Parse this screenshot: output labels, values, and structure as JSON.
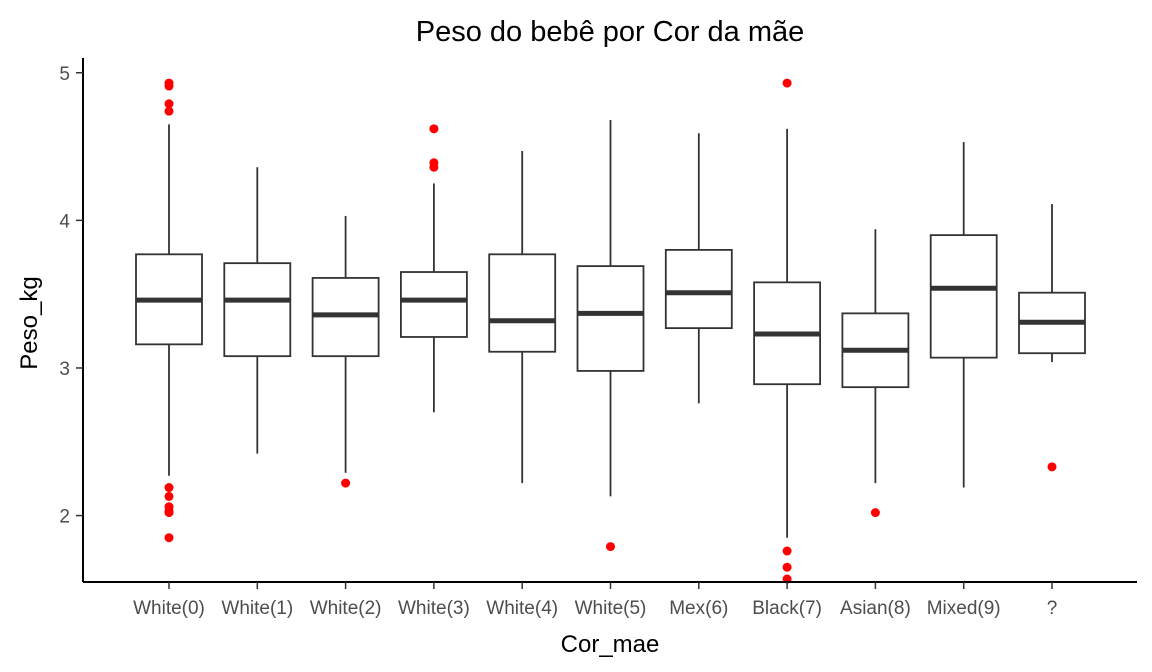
{
  "chart_data": {
    "type": "boxplot",
    "title": "Peso do bebê por Cor da mãe",
    "xlabel": "Cor_mae",
    "ylabel": "Peso_kg",
    "ylim": [
      1.55,
      5.1
    ],
    "yticks": [
      2,
      3,
      4,
      5
    ],
    "grid": false,
    "outlier_color": "#ff0000",
    "box_color": "#333333",
    "categories": [
      "White(0)",
      "White(1)",
      "White(2)",
      "White(3)",
      "White(4)",
      "White(5)",
      "Mex(6)",
      "Black(7)",
      "Asian(8)",
      "Mixed(9)",
      "?"
    ],
    "boxes": [
      {
        "category": "White(0)",
        "whisker_low": 2.27,
        "q1": 3.16,
        "median": 3.46,
        "q3": 3.77,
        "whisker_high": 4.65,
        "outliers": [
          4.93,
          4.91,
          4.79,
          4.74,
          2.19,
          2.13,
          2.06,
          2.03,
          2.02,
          1.85
        ]
      },
      {
        "category": "White(1)",
        "whisker_low": 2.42,
        "q1": 3.08,
        "median": 3.46,
        "q3": 3.71,
        "whisker_high": 4.36,
        "outliers": []
      },
      {
        "category": "White(2)",
        "whisker_low": 2.29,
        "q1": 3.08,
        "median": 3.36,
        "q3": 3.61,
        "whisker_high": 4.03,
        "outliers": [
          2.22
        ]
      },
      {
        "category": "White(3)",
        "whisker_low": 2.7,
        "q1": 3.21,
        "median": 3.46,
        "q3": 3.65,
        "whisker_high": 4.25,
        "outliers": [
          4.62,
          4.39,
          4.36
        ]
      },
      {
        "category": "White(4)",
        "whisker_low": 2.22,
        "q1": 3.11,
        "median": 3.32,
        "q3": 3.77,
        "whisker_high": 4.47,
        "outliers": []
      },
      {
        "category": "White(5)",
        "whisker_low": 2.13,
        "q1": 2.98,
        "median": 3.37,
        "q3": 3.69,
        "whisker_high": 4.68,
        "outliers": [
          1.79
        ]
      },
      {
        "category": "Mex(6)",
        "whisker_low": 2.76,
        "q1": 3.27,
        "median": 3.51,
        "q3": 3.8,
        "whisker_high": 4.59,
        "outliers": []
      },
      {
        "category": "Black(7)",
        "whisker_low": 1.85,
        "q1": 2.89,
        "median": 3.23,
        "q3": 3.58,
        "whisker_high": 4.62,
        "outliers": [
          4.93,
          1.76,
          1.65,
          1.57
        ]
      },
      {
        "category": "Asian(8)",
        "whisker_low": 2.22,
        "q1": 2.87,
        "median": 3.12,
        "q3": 3.37,
        "whisker_high": 3.94,
        "outliers": [
          2.02
        ]
      },
      {
        "category": "Mixed(9)",
        "whisker_low": 2.19,
        "q1": 3.07,
        "median": 3.54,
        "q3": 3.9,
        "whisker_high": 4.53,
        "outliers": []
      },
      {
        "category": "?",
        "whisker_low": 3.04,
        "q1": 3.1,
        "median": 3.31,
        "q3": 3.51,
        "whisker_high": 4.11,
        "outliers": [
          2.33
        ]
      }
    ]
  }
}
